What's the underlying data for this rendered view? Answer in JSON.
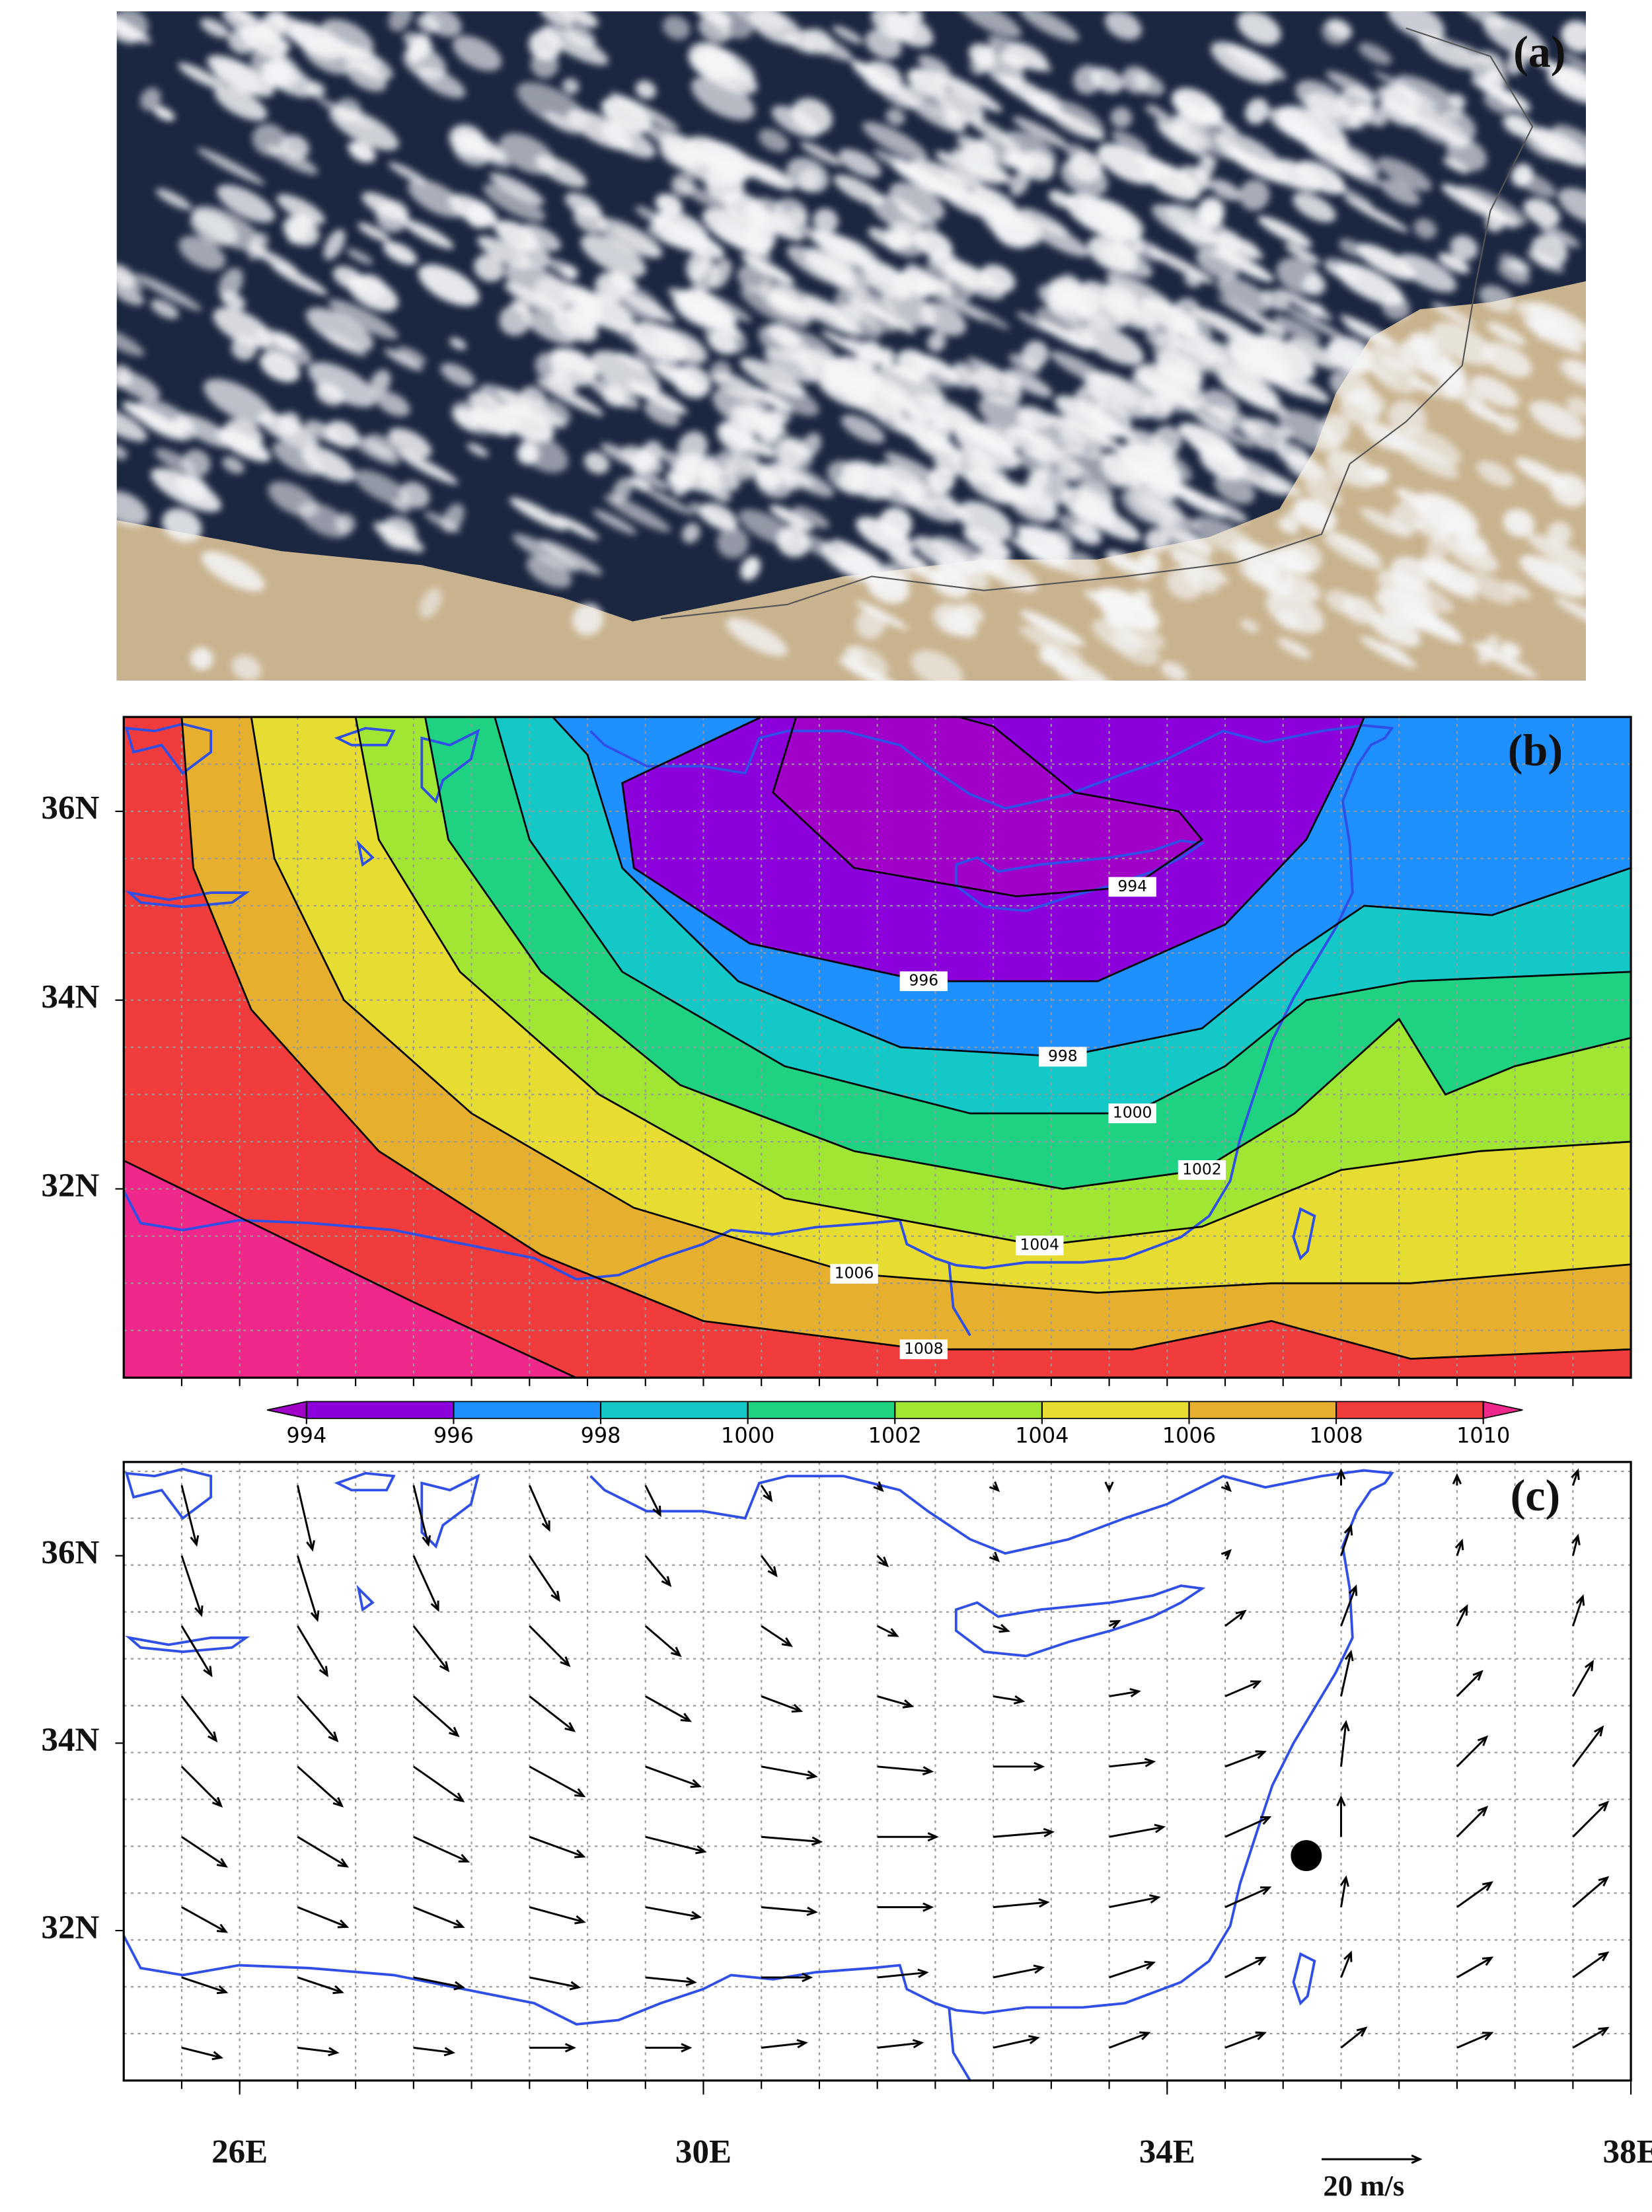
{
  "chart_data": [
    {
      "type": "image",
      "label": "(a)"
    },
    {
      "type": "contour",
      "label": "(b)",
      "xlim": [
        25,
        38
      ],
      "ylim": [
        30,
        37
      ],
      "yticks": [
        {
          "value": 32,
          "label": "32N"
        },
        {
          "value": 34,
          "label": "34N"
        },
        {
          "value": 36,
          "label": "36N"
        }
      ],
      "grid_step": 0.5,
      "contours": [
        {
          "level": 1010,
          "lon": [
            25,
            26.5,
            27.5,
            28.9,
            38,
            38,
            25
          ],
          "lat": [
            32.3,
            31.4,
            30.8,
            30,
            30,
            37,
            37
          ]
        },
        {
          "level": 1008,
          "lon": [
            25.5,
            25.6,
            26.1,
            27.2,
            28.6,
            30.0,
            31.9,
            33.7,
            34.9,
            35.5,
            36.1,
            38,
            38
          ],
          "lat": [
            37,
            35.4,
            33.9,
            32.4,
            31.3,
            30.6,
            30.3,
            30.3,
            30.6,
            30.4,
            30.2,
            30.3,
            37
          ]
        },
        {
          "level": 1006,
          "lon": [
            26.1,
            26.3,
            26.9,
            28.0,
            29.4,
            31.3,
            33.4,
            34.9,
            36.1,
            38,
            38
          ],
          "lat": [
            37,
            35.5,
            34.0,
            32.8,
            31.8,
            31.1,
            30.9,
            31.0,
            31.0,
            31.2,
            37
          ]
        },
        {
          "level": 1004,
          "lon": [
            27.0,
            27.2,
            27.9,
            29.1,
            30.7,
            32.9,
            34.3,
            35.5,
            36.7,
            38,
            38
          ],
          "lat": [
            37,
            35.7,
            34.3,
            33.0,
            31.9,
            31.4,
            31.6,
            32.2,
            32.4,
            32.5,
            37
          ]
        },
        {
          "level": 1002,
          "lon": [
            27.6,
            27.8,
            28.6,
            29.8,
            31.3,
            33.1,
            34.3,
            35.1,
            36.0,
            36.4,
            37.0,
            38,
            38
          ],
          "lat": [
            37,
            35.7,
            34.3,
            33.1,
            32.4,
            32.0,
            32.2,
            32.8,
            33.8,
            33.0,
            33.3,
            33.6,
            37
          ]
        },
        {
          "level": 1000,
          "lon": [
            28.2,
            28.5,
            29.3,
            30.7,
            32.3,
            33.7,
            34.5,
            35.2,
            36.1,
            38,
            38
          ],
          "lat": [
            37,
            35.7,
            34.3,
            33.3,
            32.8,
            32.8,
            33.3,
            34.0,
            34.2,
            34.3,
            37
          ]
        },
        {
          "level": 998,
          "lon": [
            28.7,
            29.0,
            29.3,
            30.3,
            31.7,
            33.1,
            34.3,
            35.1,
            35.7,
            36.8,
            38,
            38
          ],
          "lat": [
            37,
            36.6,
            35.4,
            34.2,
            33.5,
            33.4,
            33.7,
            34.5,
            35.0,
            34.9,
            35.4,
            37
          ]
        },
        {
          "level": 996,
          "lon": [
            30.5,
            29.3,
            29.4,
            30.4,
            31.9,
            33.4,
            34.5,
            35.2,
            35.6,
            35.7
          ],
          "lat": [
            37,
            36.3,
            35.4,
            34.6,
            34.2,
            34.2,
            34.8,
            35.7,
            36.7,
            37
          ]
        },
        {
          "level": 994,
          "lon": [
            30.8,
            30.6,
            31.3,
            32.7,
            33.7,
            34.3,
            34.1,
            33.2,
            32.5,
            32.2
          ],
          "lat": [
            37,
            36.2,
            35.4,
            35.1,
            35.2,
            35.7,
            36.0,
            36.2,
            36.9,
            37
          ]
        }
      ],
      "contour_labels": [
        994,
        996,
        998,
        1000,
        1002,
        1004,
        1006,
        1008
      ],
      "colorbar": {
        "levels": [
          994,
          996,
          998,
          1000,
          1002,
          1004,
          1006,
          1008,
          1010
        ],
        "colors": [
          "#a000c8",
          "#8c00dc",
          "#1e90ff",
          "#14c8c8",
          "#1ed282",
          "#a0e632",
          "#e6dc32",
          "#e6af2d",
          "#f03c3c",
          "#f0288c"
        ]
      }
    },
    {
      "type": "quiver",
      "label": "(c)",
      "xlim": [
        25,
        38
      ],
      "ylim": [
        30.4,
        37
      ],
      "xticks": [
        {
          "value": 26,
          "label": "26E"
        },
        {
          "value": 30,
          "label": "30E"
        },
        {
          "value": 34,
          "label": "34E"
        },
        {
          "value": 38,
          "label": "38E"
        }
      ],
      "yticks": [
        {
          "value": 32,
          "label": "32N"
        },
        {
          "value": 34,
          "label": "34N"
        },
        {
          "value": 36,
          "label": "36N"
        }
      ],
      "grid_step": 0.5,
      "lon": [
        25.5,
        26.5,
        27.5,
        28.5,
        29.5,
        30.5,
        31.5,
        32.5,
        33.5,
        34.5,
        35.5,
        36.5,
        37.5
      ],
      "lat": [
        36.75,
        36,
        35.25,
        34.5,
        33.75,
        33,
        32.25,
        31.5,
        30.75
      ],
      "u": [
        [
          3,
          3,
          3,
          4,
          3,
          2,
          1,
          1,
          0,
          1,
          0,
          0,
          1
        ],
        [
          4,
          4,
          5,
          6,
          5,
          3,
          2,
          1,
          0,
          1,
          2,
          1,
          1
        ],
        [
          6,
          6,
          7,
          8,
          7,
          6,
          4,
          3,
          2,
          4,
          3,
          2,
          2
        ],
        [
          7,
          8,
          9,
          9,
          9,
          8,
          7,
          6,
          6,
          7,
          2,
          5,
          4
        ],
        [
          8,
          9,
          10,
          11,
          11,
          11,
          11,
          10,
          9,
          8,
          1,
          6,
          6
        ],
        [
          9,
          10,
          11,
          11,
          12,
          12,
          12,
          12,
          11,
          9,
          0,
          6,
          7
        ],
        [
          9,
          10,
          10,
          11,
          11,
          11,
          11,
          11,
          10,
          9,
          1,
          7,
          7
        ],
        [
          9,
          9,
          10,
          10,
          10,
          10,
          10,
          10,
          9,
          8,
          2,
          7,
          7
        ],
        [
          8,
          8,
          8,
          9,
          9,
          9,
          9,
          9,
          8,
          8,
          5,
          7,
          7
        ]
      ],
      "v": [
        [
          -12,
          -13,
          -12,
          -9,
          -6,
          -3,
          -1,
          -1,
          -1,
          -1,
          3,
          2,
          3
        ],
        [
          -12,
          -13,
          -11,
          -9,
          -6,
          -4,
          -2,
          -1,
          0,
          1,
          6,
          3,
          4
        ],
        [
          -10,
          -10,
          -9,
          -8,
          -6,
          -4,
          -2,
          -1,
          1,
          3,
          8,
          4,
          6
        ],
        [
          -9,
          -9,
          -8,
          -7,
          -5,
          -3,
          -2,
          -1,
          1,
          3,
          9,
          5,
          7
        ],
        [
          -8,
          -8,
          -7,
          -6,
          -4,
          -2,
          -1,
          0,
          1,
          3,
          9,
          6,
          8
        ],
        [
          -6,
          -6,
          -5,
          -4,
          -3,
          -1,
          0,
          1,
          2,
          4,
          8,
          6,
          7
        ],
        [
          -5,
          -4,
          -4,
          -3,
          -2,
          -1,
          0,
          1,
          2,
          4,
          6,
          5,
          6
        ],
        [
          -3,
          -3,
          -2,
          -2,
          -1,
          0,
          1,
          2,
          3,
          4,
          5,
          4,
          5
        ],
        [
          -2,
          -1,
          -1,
          0,
          0,
          1,
          1,
          2,
          3,
          3,
          4,
          3,
          4
        ]
      ],
      "reference": {
        "speed": 20,
        "label": "20 m/s"
      },
      "station": {
        "lon": 35.2,
        "lat": 32.8
      }
    }
  ]
}
